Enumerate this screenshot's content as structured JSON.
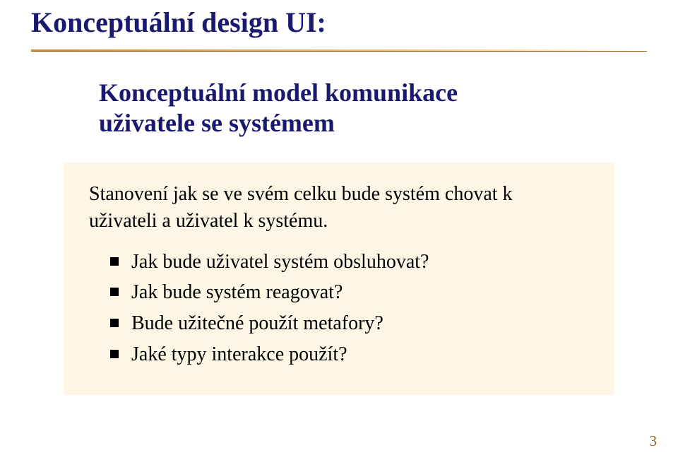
{
  "colors": {
    "title": "#191970",
    "subtitle": "#191970",
    "body": "#000000",
    "box_bg": "#fdf6e4",
    "rule_start": "#d98a1a",
    "rule_end": "#f0c470",
    "pagenum": "#a05a1a",
    "page_bg": "#ffffff"
  },
  "title": "Konceptuální design UI:",
  "subtitle_line1": "Konceptuální model komunikace",
  "subtitle_line2": "uživatele se systémem",
  "lead_line1": "Stanovení jak se ve svém celku bude systém chovat k",
  "lead_line2": "uživateli a uživatel k systému.",
  "bullets": [
    "Jak bude uživatel systém obsluhovat?",
    "Jak bude systém reagovat?",
    "Bude užitečné použít metafory?",
    "Jaké typy interakce použít?"
  ],
  "page_number": "3",
  "fonts": {
    "title_size_pt": 30,
    "subtitle_size_pt": 27,
    "body_size_pt": 21,
    "family": "Times New Roman"
  }
}
